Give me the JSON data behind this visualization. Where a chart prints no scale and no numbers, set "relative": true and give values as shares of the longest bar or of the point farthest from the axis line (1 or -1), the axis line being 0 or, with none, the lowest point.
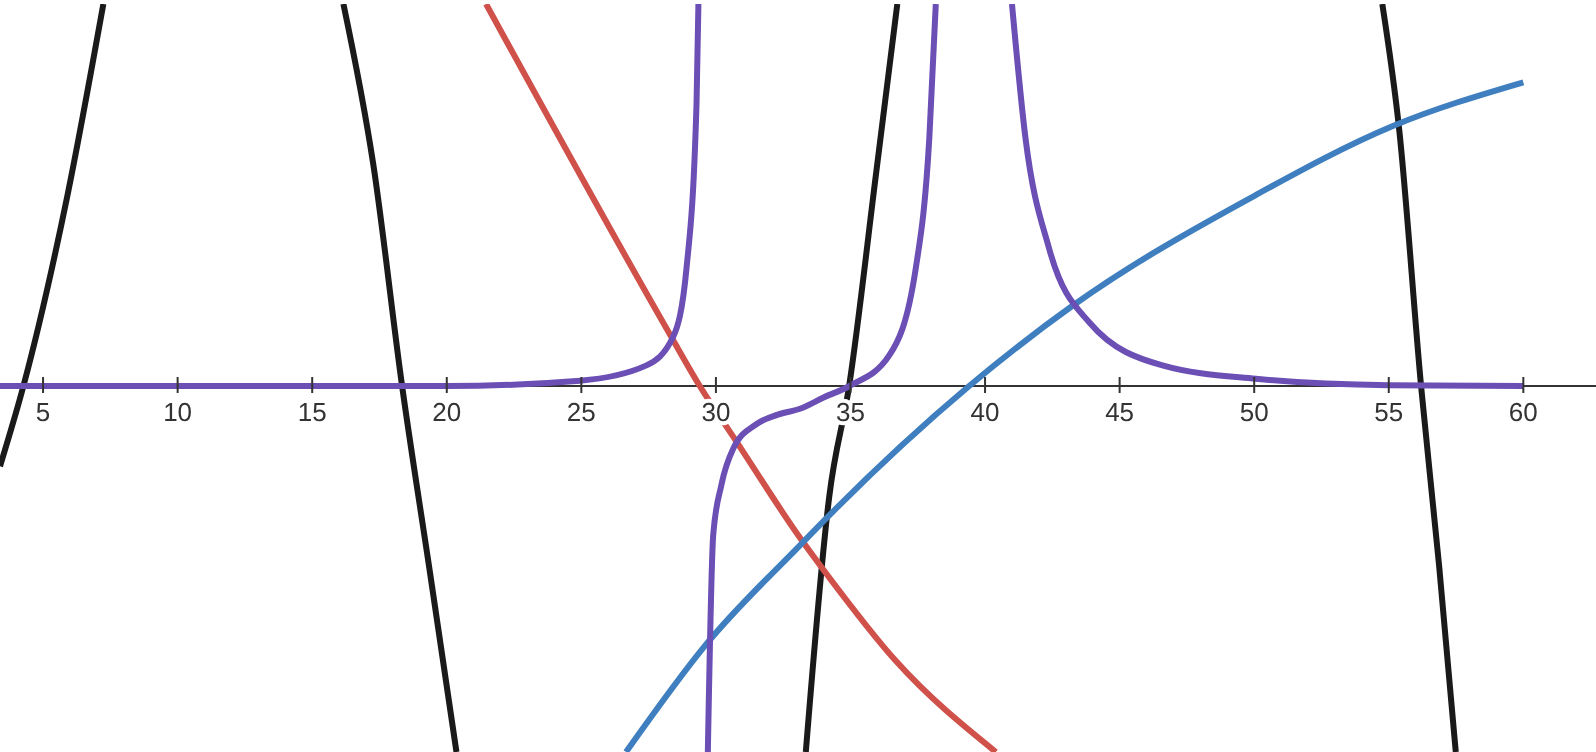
{
  "chart_data": {
    "type": "line",
    "relative": true,
    "marker": "none",
    "xlim": [
      3.4,
      62.7
    ],
    "xticks": [
      5,
      10,
      15,
      20,
      25,
      30,
      35,
      40,
      45,
      50,
      55,
      60
    ],
    "series": [
      {
        "color": "#1a1a1a",
        "x": [
          3.4,
          4.27,
          5.88,
          7.24,
          12,
          16.16,
          17.27,
          18.34,
          19.38,
          20.36,
          27,
          33.34,
          34.21,
          34.95,
          35.94,
          36.74,
          46,
          54.76,
          55.39,
          56.2,
          56.87,
          57.49
        ],
        "values": [
          -0.21,
          0,
          0.49,
          1,
          null,
          1,
          0.58,
          0,
          -0.49,
          -0.958,
          null,
          -0.958,
          -0.29,
          0,
          0.55,
          1,
          null,
          1,
          0.67,
          0,
          -0.47,
          -0.958
        ]
      },
      {
        "color": "#d0504a",
        "x": [
          21.46,
          28.17,
          29.4,
          30.77,
          33.15,
          34.09,
          36.69,
          40.4
        ],
        "values": [
          1,
          0.15,
          0,
          -0.146,
          -0.4,
          -0.49,
          -0.72,
          -0.958
        ]
      },
      {
        "color": "#3f7fc0",
        "x": [
          26.66,
          29.65,
          33.15,
          34.33,
          39.41,
          43.25,
          50.06,
          55.13,
          60
        ],
        "values": [
          -0.958,
          -0.675,
          -0.415,
          -0.33,
          0,
          0.21,
          0.5,
          0.68,
          0.795
        ]
      },
      {
        "color": "#6b4fb5",
        "x": [
          3.4,
          20,
          24.95,
          27.42,
          28.42,
          28.91,
          29.28,
          29.35,
          29.5,
          29.7,
          29.9,
          30.2,
          30.65,
          31.5,
          32.3,
          33.15,
          34,
          34.95,
          36.44,
          37.43,
          37.93,
          38.17,
          39.5,
          41.0,
          41.5,
          42.38,
          43.87,
          46.59,
          50.06,
          55.01,
          60
        ],
        "values": [
          0,
          0,
          0.014,
          0.054,
          0.13,
          0.31,
          0.74,
          1,
          null,
          -0.958,
          -0.39,
          -0.26,
          -0.163,
          -0.1,
          -0.075,
          -0.059,
          -0.03,
          0,
          0.08,
          0.31,
          0.65,
          1,
          null,
          1,
          0.65,
          0.36,
          0.167,
          0.054,
          0.019,
          0.002,
          0
        ]
      }
    ]
  }
}
